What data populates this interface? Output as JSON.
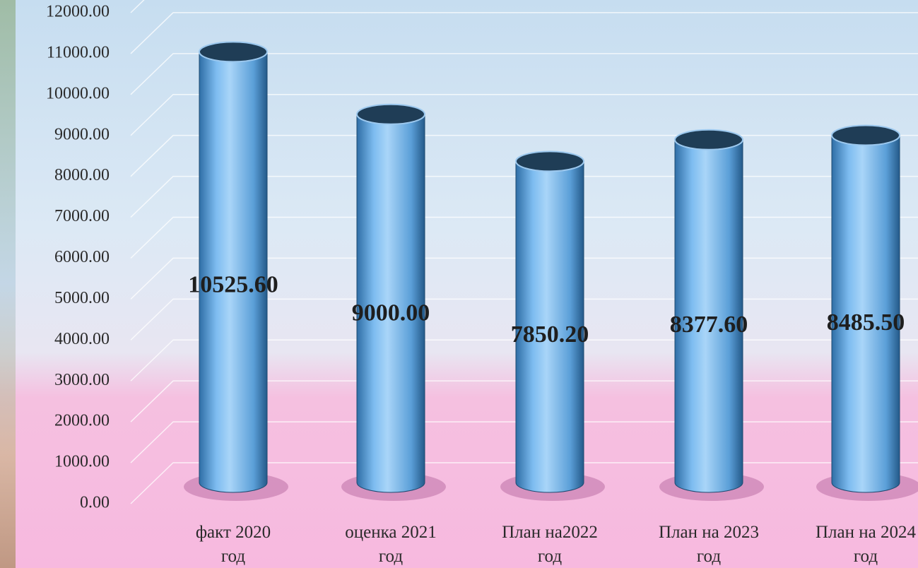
{
  "chart_data": {
    "type": "bar3d",
    "categories": [
      "факт 2020 год",
      "оценка 2021 год",
      "План на2022 год",
      "План на 2023 год",
      "План на 2024 год"
    ],
    "values": [
      10525.6,
      9000,
      7850.2,
      8377.6,
      8485.5
    ],
    "value_labels": [
      "10525.60",
      "9000.00",
      "7850.20",
      "8377.60",
      "8485.50"
    ],
    "color": "#6aaee4",
    "ylim": [
      0,
      12000
    ],
    "yticks": [
      {
        "value": 0,
        "label": "0.00"
      },
      {
        "value": 1000,
        "label": "1000.00"
      },
      {
        "value": 2000,
        "label": "2000.00"
      },
      {
        "value": 3000,
        "label": "3000.00"
      },
      {
        "value": 4000,
        "label": "4000.00"
      },
      {
        "value": 5000,
        "label": "5000.00"
      },
      {
        "value": 6000,
        "label": "6000.00"
      },
      {
        "value": 7000,
        "label": "7000.00"
      },
      {
        "value": 8000,
        "label": "8000.00"
      },
      {
        "value": 9000,
        "label": "9000.00"
      },
      {
        "value": 10000,
        "label": "10000.00"
      },
      {
        "value": 11000,
        "label": "11000.00"
      },
      {
        "value": 12000,
        "label": "12000.00"
      }
    ],
    "grid": true
  }
}
